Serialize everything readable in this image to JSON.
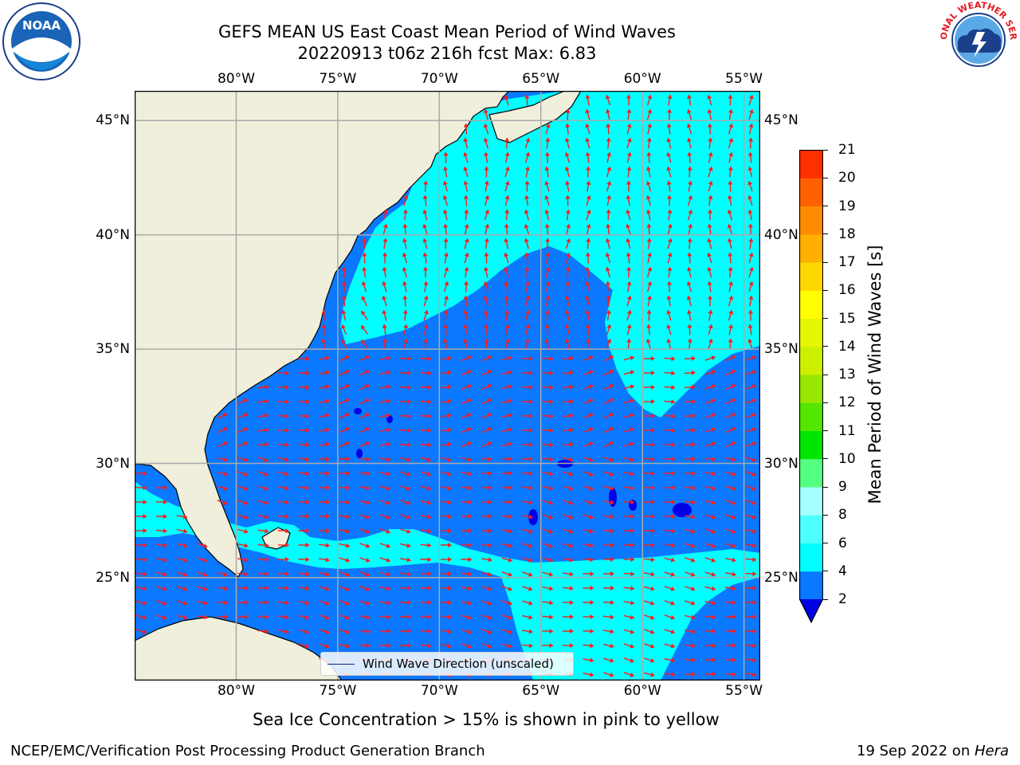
{
  "title": {
    "line1": "GEFS MEAN US East Coast Mean Period of Wind Waves",
    "line2": "20220913 t06z 216h fcst   Max: 6.83"
  },
  "logos": {
    "left": "NOAA",
    "right": "NATIONAL WEATHER SERVICE"
  },
  "map": {
    "lon_ticks": [
      "80°W",
      "75°W",
      "70°W",
      "65°W",
      "60°W",
      "55°W"
    ],
    "lat_ticks": [
      "45°N",
      "40°N",
      "35°N",
      "30°N",
      "25°N"
    ],
    "lon_range": [
      -85,
      -54.2
    ],
    "lat_range": [
      20.5,
      46.3
    ],
    "legend": "Wind Wave Direction (unscaled)",
    "colors": {
      "land": "#efefdc",
      "water_2_4": "#0a78ff",
      "water_4_6": "#00ffff",
      "below_2": "#0000e6",
      "arrow": "#ff1a1a",
      "grid": "#aaaaaa"
    }
  },
  "colorbar": {
    "label": "Mean Period of Wind Waves [s]",
    "ticks": [
      "2",
      "4",
      "6",
      "8",
      "9",
      "10",
      "11",
      "12",
      "13",
      "14",
      "15",
      "16",
      "17",
      "18",
      "19",
      "20",
      "21"
    ],
    "colors": [
      "#0a78ff",
      "#00ffff",
      "#4dffff",
      "#a6ffff",
      "#55ff80",
      "#00e600",
      "#55e600",
      "#99e600",
      "#ccf000",
      "#e6f500",
      "#ffff00",
      "#ffd700",
      "#ffb000",
      "#ff8c00",
      "#ff6000",
      "#ff3000",
      "#ff0000"
    ],
    "under_color": "#0000e6"
  },
  "footer": {
    "ice_note": "Sea Ice Concentration > 15% is shown in pink to yellow",
    "credit": "NCEP/EMC/Verification Post Processing Product Generation Branch",
    "date": "19 Sep 2022 on ",
    "machine": "Hera"
  }
}
